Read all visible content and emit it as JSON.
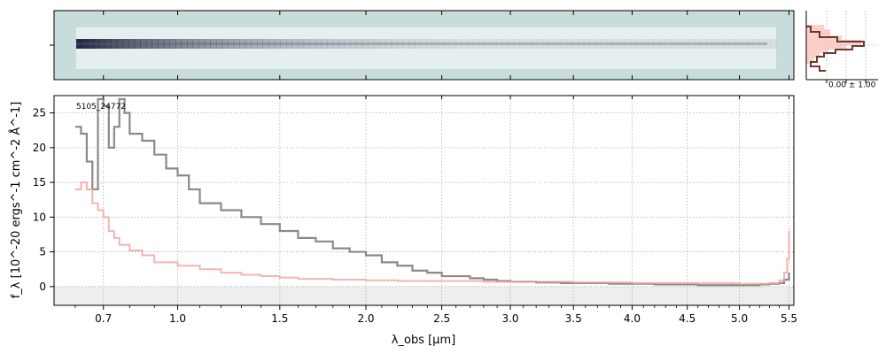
{
  "chart_data": {
    "type": "line",
    "object_label": "5105_24772",
    "xlabel": "λ_obs [μm]",
    "ylabel": "f_λ [10^-20 ergs^-1 cm^-2 Å^-1]",
    "x_ticks": [
      0.7,
      1.0,
      1.5,
      2.0,
      2.5,
      3.0,
      3.5,
      4.0,
      4.5,
      5.0,
      5.5
    ],
    "x_tick_labels": [
      "0.7",
      "1.0",
      "1.5",
      "2.0",
      "2.5",
      "3.0",
      "3.5",
      "4.0",
      "4.5",
      "5.0",
      "5.5"
    ],
    "y_ticks": [
      0,
      5,
      10,
      15,
      20,
      25
    ],
    "y_tick_labels": [
      "0",
      "5",
      "10",
      "15",
      "20",
      "25"
    ],
    "xlim": [
      0.53,
      5.55
    ],
    "ylim": [
      -2.7,
      27.5
    ],
    "grid": true,
    "series": [
      {
        "role": "spectrum",
        "color": "#8a8a8a",
        "x": [
          0.6,
          0.62,
          0.64,
          0.66,
          0.68,
          0.7,
          0.72,
          0.74,
          0.76,
          0.78,
          0.8,
          0.85,
          0.9,
          0.95,
          1.0,
          1.05,
          1.1,
          1.2,
          1.3,
          1.4,
          1.5,
          1.6,
          1.7,
          1.8,
          1.9,
          2.0,
          2.1,
          2.2,
          2.3,
          2.4,
          2.5,
          2.6,
          2.7,
          2.8,
          2.9,
          3.0,
          3.2,
          3.4,
          3.6,
          3.8,
          4.0,
          4.2,
          4.4,
          4.6,
          4.8,
          5.0,
          5.2,
          5.3,
          5.4,
          5.45,
          5.5
        ],
        "y": [
          23,
          22,
          18,
          14,
          27,
          26,
          20,
          23,
          27,
          25,
          22,
          21,
          19,
          17,
          16,
          14,
          12,
          11,
          10,
          9,
          8,
          7,
          6.5,
          5.5,
          5,
          4.5,
          3.5,
          3,
          2.3,
          2,
          1.5,
          1.5,
          1.2,
          1,
          0.8,
          0.7,
          0.6,
          0.5,
          0.5,
          0.4,
          0.4,
          0.3,
          0.3,
          0.2,
          0.2,
          0.2,
          0.3,
          0.4,
          0.5,
          1.0,
          2.0
        ]
      },
      {
        "role": "model",
        "color": "#f4a0a0",
        "x": [
          0.6,
          0.62,
          0.64,
          0.66,
          0.68,
          0.7,
          0.72,
          0.74,
          0.76,
          0.8,
          0.85,
          0.9,
          1.0,
          1.1,
          1.2,
          1.3,
          1.4,
          1.5,
          1.6,
          1.8,
          2.0,
          2.2,
          2.5,
          2.8,
          3.0,
          3.5,
          4.0,
          4.5,
          5.0,
          5.2,
          5.3,
          5.4,
          5.45,
          5.48,
          5.5
        ],
        "y": [
          14,
          15,
          14,
          12,
          11,
          10,
          8,
          7,
          6,
          5.2,
          4.5,
          3.5,
          3,
          2.5,
          2,
          1.7,
          1.5,
          1.3,
          1.1,
          1,
          0.9,
          0.8,
          0.8,
          0.7,
          0.7,
          0.6,
          0.5,
          0.5,
          0.4,
          0.4,
          0.5,
          0.9,
          2,
          4,
          8
        ]
      }
    ],
    "inset": {
      "label": "0.00 ± 1.00"
    },
    "colors": {
      "spectrum": "#8a8a8a",
      "model": "#f4a0a0",
      "profile": "#6b3a2e",
      "profile_fill": "#f8c7bd",
      "image_bg": "#c8dcdc",
      "trace_dark": "#1a1f3a",
      "grid": "#b0b0b0",
      "zero_band": "#eeeeee"
    }
  }
}
